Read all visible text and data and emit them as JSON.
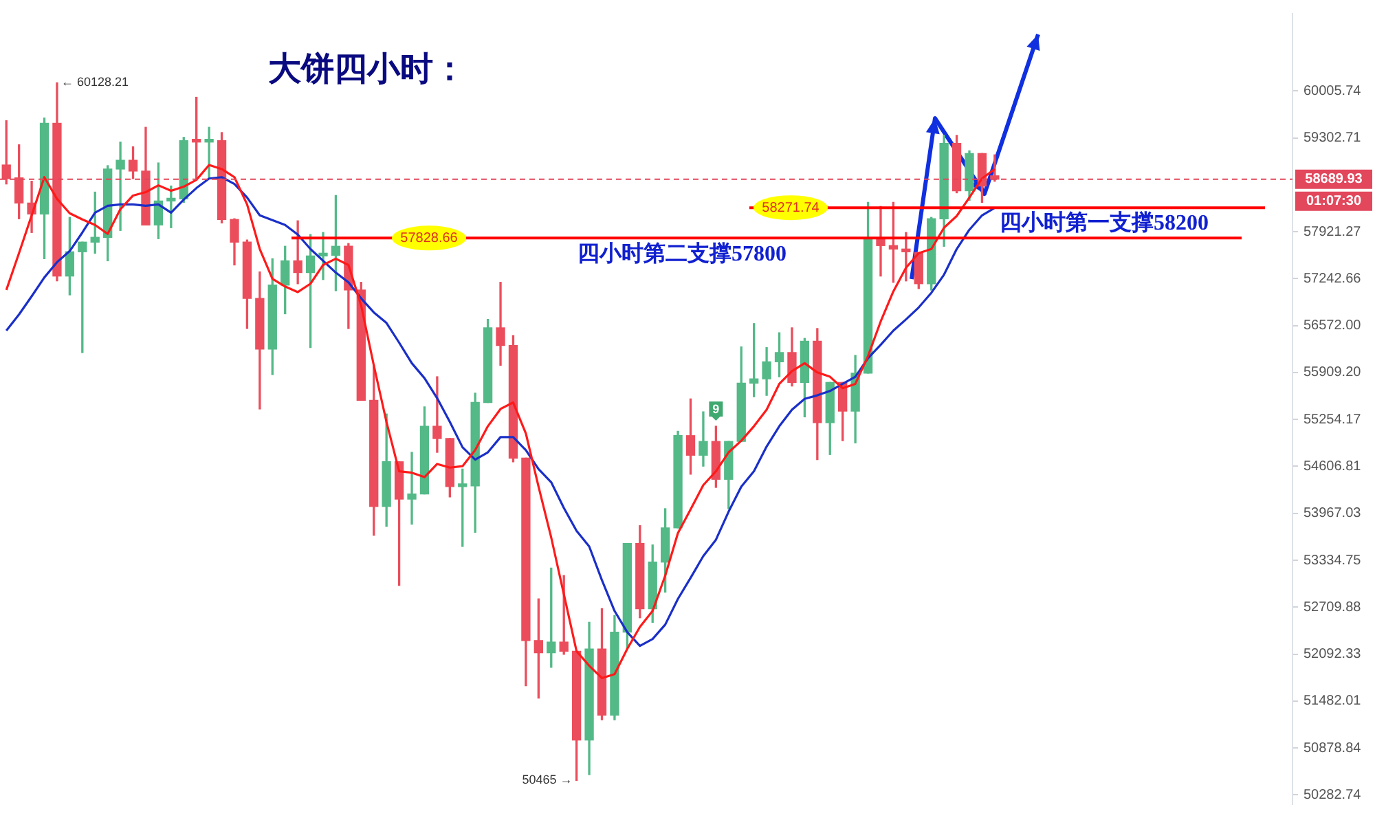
{
  "chart_data": {
    "type": "candlestick",
    "title": "大饼四小时：",
    "categories": [
      null,
      null,
      null,
      null,
      null,
      null,
      null,
      null,
      null,
      null,
      null,
      null,
      null,
      null,
      null,
      null,
      null,
      null,
      null,
      null,
      null,
      null,
      null,
      null,
      null,
      null,
      null,
      null,
      null,
      null,
      null,
      null,
      null,
      null,
      null,
      null,
      null,
      null,
      null,
      null,
      null,
      null,
      null,
      null,
      null,
      null,
      null,
      null,
      null,
      null,
      null,
      null,
      null,
      null,
      null,
      null,
      null,
      null,
      null,
      null,
      null,
      null,
      null,
      null,
      null,
      null,
      null,
      null,
      null,
      null,
      null,
      null,
      null,
      null,
      null,
      null,
      null,
      null,
      null,
      null,
      null,
      null,
      null,
      null,
      null,
      null,
      null,
      null,
      null,
      null,
      null,
      null,
      null,
      null,
      null,
      null,
      null,
      null,
      null,
      null,
      null,
      null
    ],
    "ohlc": [
      [
        58900,
        59560,
        58620,
        58700
      ],
      [
        58710,
        59200,
        58110,
        58340
      ],
      [
        58340,
        58660,
        57910,
        58180
      ],
      [
        58180,
        59600,
        57530,
        59520
      ],
      [
        59520,
        60128.21,
        57210,
        57280
      ],
      [
        57280,
        58130,
        57010,
        57630
      ],
      [
        57630,
        57770,
        56190,
        57770
      ],
      [
        57770,
        58500,
        57610,
        57840
      ],
      [
        57840,
        58890,
        57500,
        58840
      ],
      [
        58840,
        59240,
        57940,
        58970
      ],
      [
        58970,
        59170,
        58700,
        58810
      ],
      [
        58810,
        59460,
        58020,
        58020
      ],
      [
        58020,
        58930,
        57820,
        58370
      ],
      [
        58370,
        58590,
        57980,
        58400
      ],
      [
        58400,
        59310,
        58350,
        59260
      ],
      [
        59260,
        59910,
        58700,
        59240
      ],
      [
        59240,
        59460,
        58700,
        59260
      ],
      [
        59260,
        59380,
        58050,
        58100
      ],
      [
        58100,
        58110,
        57440,
        57770
      ],
      [
        57770,
        57800,
        56530,
        56960
      ],
      [
        56960,
        57340,
        55400,
        56240
      ],
      [
        56240,
        57530,
        55880,
        57150
      ],
      [
        57150,
        57710,
        56740,
        57500
      ],
      [
        57500,
        58080,
        57170,
        57330
      ],
      [
        57330,
        57880,
        56260,
        57570
      ],
      [
        57570,
        57910,
        57230,
        57580
      ],
      [
        57580,
        58450,
        57070,
        57710
      ],
      [
        57710,
        57750,
        56530,
        57080
      ],
      [
        57080,
        57190,
        55520,
        55520
      ],
      [
        55520,
        56010,
        53670,
        54060
      ],
      [
        54060,
        55330,
        53790,
        54670
      ],
      [
        54670,
        54670,
        53000,
        54160
      ],
      [
        54160,
        54800,
        53820,
        54230
      ],
      [
        54230,
        55430,
        54230,
        55160
      ],
      [
        55160,
        55850,
        54800,
        54990
      ],
      [
        54990,
        54990,
        54190,
        54330
      ],
      [
        54330,
        54570,
        53520,
        54340
      ],
      [
        54340,
        55620,
        53710,
        55490
      ],
      [
        55490,
        56660,
        55490,
        56540
      ],
      [
        56540,
        57190,
        56010,
        56290
      ],
      [
        56290,
        56430,
        54670,
        54720
      ],
      [
        54720,
        54720,
        51680,
        52270
      ],
      [
        52270,
        52820,
        51520,
        52110
      ],
      [
        52110,
        53230,
        51920,
        52250
      ],
      [
        52250,
        53130,
        52090,
        52130
      ],
      [
        52130,
        52130,
        50465,
        50980
      ],
      [
        50980,
        52510,
        50540,
        52160
      ],
      [
        52160,
        52690,
        51240,
        51300
      ],
      [
        51300,
        52600,
        51240,
        52380
      ],
      [
        52380,
        53560,
        52160,
        53560
      ],
      [
        53560,
        53800,
        52570,
        52690
      ],
      [
        52690,
        53540,
        52510,
        53310
      ],
      [
        53310,
        54030,
        52910,
        53770
      ],
      [
        53770,
        55090,
        53770,
        55030
      ],
      [
        55030,
        55540,
        54500,
        54760
      ],
      [
        54760,
        55360,
        54610,
        54950
      ],
      [
        54950,
        55160,
        54320,
        54430
      ],
      [
        54430,
        54950,
        54030,
        54950
      ],
      [
        54950,
        56270,
        54950,
        55760
      ],
      [
        55760,
        56600,
        55570,
        55820
      ],
      [
        55820,
        56260,
        55590,
        56060
      ],
      [
        56060,
        56470,
        55850,
        56190
      ],
      [
        56190,
        56540,
        55720,
        55770
      ],
      [
        55770,
        56390,
        55290,
        56350
      ],
      [
        56350,
        56530,
        54700,
        55210
      ],
      [
        55210,
        55770,
        54770,
        55770
      ],
      [
        55770,
        55770,
        54960,
        55370
      ],
      [
        55370,
        56150,
        54930,
        55900
      ],
      [
        55900,
        58350,
        55900,
        57820
      ],
      [
        57820,
        58290,
        57280,
        57720
      ],
      [
        57720,
        58350,
        57190,
        57670
      ],
      [
        57670,
        57910,
        57210,
        57630
      ],
      [
        57620,
        57620,
        57100,
        57170
      ],
      [
        57170,
        58130,
        57080,
        58110
      ],
      [
        58110,
        59340,
        57710,
        59220
      ],
      [
        59220,
        59340,
        58490,
        58520
      ],
      [
        58520,
        59110,
        58380,
        59070
      ],
      [
        59070,
        59070,
        58350,
        58590
      ],
      [
        58740,
        59050,
        58660,
        58689.93
      ],
      null,
      null,
      null,
      null,
      null,
      null,
      null,
      null,
      null,
      null,
      null,
      null,
      null,
      null,
      null,
      null,
      null,
      null,
      null,
      null,
      null,
      null,
      null
    ],
    "colors": [
      "#eb4d5c",
      "#eb4d5c",
      "#eb4d5c",
      "#53b987",
      "#eb4d5c",
      "#53b987",
      "#53b987",
      "#53b987",
      "#53b987",
      "#53b987",
      "#eb4d5c",
      "#eb4d5c",
      "#53b987",
      "#53b987",
      "#53b987",
      "#eb4d5c",
      "#53b987",
      "#eb4d5c",
      "#eb4d5c",
      "#eb4d5c",
      "#eb4d5c",
      "#53b987",
      "#53b987",
      "#eb4d5c",
      "#53b987",
      "#53b987",
      "#53b987",
      "#eb4d5c",
      "#eb4d5c",
      "#eb4d5c",
      "#53b987",
      "#eb4d5c",
      "#53b987",
      "#53b987",
      "#eb4d5c",
      "#eb4d5c",
      "#53b987",
      "#53b987",
      "#53b987",
      "#eb4d5c",
      "#eb4d5c",
      "#eb4d5c",
      "#eb4d5c",
      "#53b987",
      "#eb4d5c",
      "#eb4d5c",
      "#53b987",
      "#eb4d5c",
      "#53b987",
      "#53b987",
      "#eb4d5c",
      "#53b987",
      "#53b987",
      "#53b987",
      "#eb4d5c",
      "#53b987",
      "#eb4d5c",
      "#53b987",
      "#53b987",
      "#53b987",
      "#53b987",
      "#53b987",
      "#eb4d5c",
      "#53b987",
      "#eb4d5c",
      "#53b987",
      "#eb4d5c",
      "#53b987",
      "#53b987",
      "#eb4d5c",
      "#eb4d5c",
      "#eb4d5c",
      "#eb4d5c",
      "#53b987",
      "#53b987",
      "#eb4d5c",
      "#53b987",
      "#eb4d5c",
      "#eb4d5c",
      null,
      null,
      null,
      null,
      null,
      null,
      null,
      null,
      null,
      null,
      null,
      null,
      null,
      null,
      null,
      null,
      null,
      null,
      null,
      null,
      null,
      null,
      null
    ],
    "series": [
      {
        "type": "line",
        "color": "#ff1a1a",
        "values": [
          57080,
          57610,
          58160,
          58720,
          58400,
          58190,
          58100,
          58020,
          57890,
          58250,
          58450,
          58500,
          58600,
          58520,
          58580,
          58680,
          58900,
          58840,
          58720,
          58320,
          57670,
          57240,
          57130,
          57050,
          57170,
          57440,
          57530,
          57440,
          56860,
          56010,
          55220,
          54540,
          54520,
          54460,
          54640,
          54590,
          54610,
          54830,
          55160,
          55400,
          55490,
          55060,
          54330,
          53640,
          52880,
          52130,
          51940,
          51780,
          51830,
          52160,
          52450,
          52660,
          53130,
          53700,
          54020,
          54350,
          54540,
          54800,
          54960,
          55160,
          55390,
          55750,
          55930,
          56040,
          55910,
          55850,
          55690,
          55750,
          56140,
          56630,
          57060,
          57400,
          57610,
          57670,
          57980,
          58150,
          58420,
          58700,
          58840,
          null,
          null,
          null,
          null,
          null,
          null,
          null,
          null,
          null,
          null,
          null,
          null,
          null,
          null,
          null,
          null,
          null,
          null,
          null,
          null,
          null,
          null,
          null
        ]
      },
      {
        "type": "line",
        "color": "#1a2fc8",
        "values": [
          56500,
          56730,
          56990,
          57260,
          57480,
          57640,
          57910,
          58200,
          58300,
          58320,
          58320,
          58300,
          58320,
          58200,
          58390,
          58560,
          58700,
          58720,
          58620,
          58420,
          58160,
          58090,
          58020,
          57880,
          57670,
          57500,
          57330,
          57190,
          56960,
          56760,
          56610,
          56330,
          56040,
          55830,
          55550,
          55220,
          54870,
          54700,
          54800,
          55010,
          55010,
          54830,
          54570,
          54390,
          54040,
          53730,
          53520,
          53070,
          52660,
          52380,
          52200,
          52290,
          52480,
          52820,
          53100,
          53390,
          53610,
          53990,
          54330,
          54540,
          54880,
          55160,
          55390,
          55540,
          55590,
          55650,
          55750,
          55850,
          56110,
          56300,
          56500,
          56660,
          56830,
          57040,
          57300,
          57670,
          57950,
          58160,
          58270,
          null,
          null,
          null,
          null,
          null,
          null,
          null,
          null,
          null,
          null,
          null,
          null,
          null,
          null,
          null,
          null,
          null,
          null,
          null,
          null,
          null,
          null,
          null
        ]
      }
    ],
    "log": "y",
    "ylim": [
      50165,
      61180
    ],
    "yticks": [
      60005.74,
      59302.71,
      57921.27,
      57242.66,
      {
        "value": 56572,
        "label": "56572.00"
      },
      {
        "value": 55909.2,
        "label": "55909.20"
      },
      55254.17,
      54606.81,
      53967.03,
      53334.75,
      52709.88,
      52092.33,
      51482.01,
      50878.84,
      50282.74
    ],
    "ref_lines": [
      {
        "axis": "y",
        "value": 57828.66,
        "label": "57828.66",
        "color": "#ff0000",
        "line_style": "solid"
      },
      {
        "axis": "y",
        "value": 58271.74,
        "label": "58271.74",
        "color": "#ff0000",
        "line_style": "solid"
      },
      {
        "axis": "y",
        "value": 58689.93,
        "label": "58689.93",
        "color": "#e2475c",
        "line_style": "dashed"
      }
    ],
    "annotations": [
      "← 60128.21",
      "50465 →",
      {
        "text": "四小时第二支撑57800",
        "y": 57828.66
      },
      {
        "text": "四小时第一支撑58200",
        "y": 58271.74
      },
      "01:07:30",
      "9"
    ]
  }
}
